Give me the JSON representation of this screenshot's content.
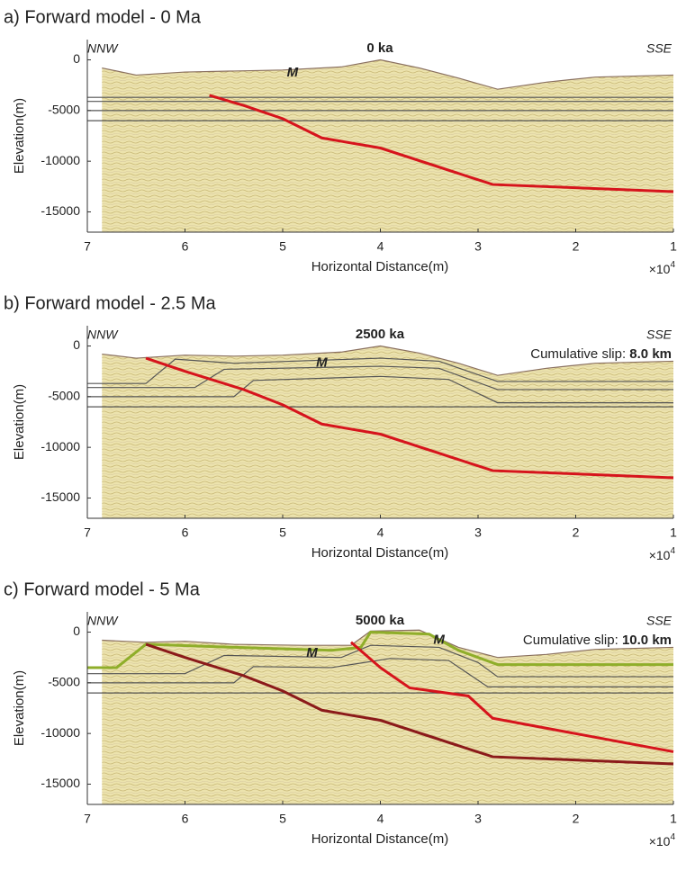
{
  "chart_data": [
    {
      "type": "line",
      "title": "a) Forward model - 0 Ma",
      "subtitle": "0 ka",
      "left_label": "NNW",
      "right_label": "SSE",
      "xlabel": "Horizontal Distance(m)",
      "ylabel": "Elevation(m)",
      "x_multiplier": "×10",
      "x_multiplier_exponent": "4",
      "annotations": [
        "M"
      ],
      "xlim": [
        7,
        1
      ],
      "xticks": [
        7,
        6,
        5,
        4,
        3,
        2,
        1
      ],
      "ylim": [
        -17000,
        2000
      ],
      "yticks": [
        0,
        -5000,
        -10000,
        -15000
      ],
      "surface": {
        "color": "#8a7060",
        "x": [
          6.85,
          6.5,
          6.0,
          5.5,
          5.0,
          4.4,
          4.0,
          3.6,
          3.2,
          2.8,
          2.3,
          1.8,
          1.0
        ],
        "values": [
          -800,
          -1500,
          -1200,
          -1100,
          -1000,
          -700,
          0,
          -800,
          -1800,
          -2900,
          -2200,
          -1700,
          -1500
        ]
      },
      "series": [
        {
          "color": "#555555",
          "x": [
            7,
            1
          ],
          "values": [
            -3700,
            -3700
          ]
        },
        {
          "color": "#555555",
          "x": [
            7,
            1
          ],
          "values": [
            -4100,
            -4100
          ]
        },
        {
          "color": "#555555",
          "x": [
            7,
            1
          ],
          "values": [
            -5000,
            -5000
          ]
        },
        {
          "color": "#555555",
          "x": [
            7,
            1
          ],
          "values": [
            -6000,
            -6000
          ]
        },
        {
          "color": "#d6141c",
          "x": [
            5.75,
            5.4,
            5.0,
            4.6,
            4.0,
            2.85,
            1.0
          ],
          "values": [
            -3500,
            -4500,
            -5800,
            -7700,
            -8700,
            -12300,
            -13000
          ]
        }
      ]
    },
    {
      "type": "line",
      "title": "b) Forward model - 2.5 Ma",
      "subtitle": "2500 ka",
      "left_label": "NNW",
      "right_label": "SSE",
      "slip_label": "Cumulative slip:",
      "slip_value": "8.0 km",
      "xlabel": "Horizontal Distance(m)",
      "ylabel": "Elevation(m)",
      "x_multiplier": "×10",
      "x_multiplier_exponent": "4",
      "annotations": [
        "M"
      ],
      "xlim": [
        7,
        1
      ],
      "xticks": [
        7,
        6,
        5,
        4,
        3,
        2,
        1
      ],
      "ylim": [
        -17000,
        2000
      ],
      "yticks": [
        0,
        -5000,
        -10000,
        -15000
      ],
      "surface": {
        "color": "#8a7060",
        "x": [
          6.85,
          6.5,
          6.0,
          5.5,
          5.0,
          4.4,
          4.0,
          3.6,
          3.2,
          2.8,
          2.3,
          1.8,
          1.0
        ],
        "values": [
          -800,
          -1200,
          -900,
          -1000,
          -900,
          -600,
          0,
          -700,
          -1700,
          -2900,
          -2200,
          -1700,
          -1500
        ]
      },
      "series": [
        {
          "color": "#555555",
          "x": [
            7,
            6.4,
            6.1,
            5.5,
            4.0,
            3.4,
            2.8,
            1.0
          ],
          "values": [
            -3700,
            -3700,
            -1300,
            -1700,
            -1200,
            -1500,
            -3500,
            -3500
          ]
        },
        {
          "color": "#555555",
          "x": [
            7,
            5.9,
            5.6,
            4.0,
            3.4,
            2.8,
            1.0
          ],
          "values": [
            -4100,
            -4100,
            -2300,
            -2000,
            -2200,
            -4300,
            -4300
          ]
        },
        {
          "color": "#555555",
          "x": [
            7,
            5.5,
            5.3,
            4.0,
            3.3,
            2.8,
            1.0
          ],
          "values": [
            -5000,
            -5000,
            -3400,
            -3000,
            -3300,
            -5600,
            -5600
          ]
        },
        {
          "color": "#555555",
          "x": [
            7,
            5.2,
            1.0
          ],
          "values": [
            -6000,
            -6000,
            -6000
          ]
        },
        {
          "color": "#d6141c",
          "x": [
            6.4,
            6.0,
            5.4,
            5.0,
            4.6,
            4.0,
            2.85,
            1.0
          ],
          "values": [
            -1200,
            -2500,
            -4300,
            -5800,
            -7700,
            -8700,
            -12300,
            -13000
          ]
        }
      ]
    },
    {
      "type": "line",
      "title": "c) Forward model - 5 Ma",
      "subtitle": "5000 ka",
      "left_label": "NNW",
      "right_label": "SSE",
      "slip_label": "Cumulative slip:",
      "slip_value": "10.0 km",
      "xlabel": "Horizontal Distance(m)",
      "ylabel": "Elevation(m)",
      "x_multiplier": "×10",
      "x_multiplier_exponent": "4",
      "annotations": [
        "M",
        "M"
      ],
      "xlim": [
        7,
        1
      ],
      "xticks": [
        7,
        6,
        5,
        4,
        3,
        2,
        1
      ],
      "ylim": [
        -17000,
        2000
      ],
      "yticks": [
        0,
        -5000,
        -10000,
        -15000
      ],
      "surface": {
        "color": "#8a7060",
        "x": [
          6.85,
          6.4,
          6.0,
          5.5,
          4.8,
          4.3,
          4.1,
          3.6,
          3.2,
          2.8,
          2.3,
          1.8,
          1.0
        ],
        "values": [
          -800,
          -1000,
          -900,
          -1200,
          -1300,
          -1300,
          100,
          200,
          -1500,
          -2500,
          -2200,
          -1700,
          -1500
        ]
      },
      "series": [
        {
          "color": "#8fae2a",
          "x": [
            7,
            6.7,
            6.4,
            6.1,
            5.5,
            4.5,
            4.2,
            4.1,
            3.5,
            3.2,
            2.8,
            1.0
          ],
          "values": [
            -3500,
            -3500,
            -1200,
            -1300,
            -1500,
            -1800,
            -1500,
            0,
            -200,
            -1800,
            -3200,
            -3200
          ]
        },
        {
          "color": "#555555",
          "x": [
            7,
            6.0,
            5.6,
            4.4,
            4.1,
            3.4,
            3.0,
            2.8,
            1.0
          ],
          "values": [
            -4100,
            -4100,
            -2300,
            -2500,
            -1300,
            -1500,
            -3000,
            -4400,
            -4400
          ]
        },
        {
          "color": "#555555",
          "x": [
            7,
            5.5,
            5.3,
            4.5,
            3.9,
            3.3,
            2.9,
            1.0
          ],
          "values": [
            -5000,
            -5000,
            -3400,
            -3500,
            -2600,
            -2800,
            -5400,
            -5400
          ]
        },
        {
          "color": "#555555",
          "x": [
            7,
            5.2,
            1.0
          ],
          "values": [
            -6000,
            -6000,
            -6000
          ]
        },
        {
          "color": "#8b1a1a",
          "x": [
            6.4,
            6.0,
            5.4,
            5.0,
            4.6,
            4.0,
            2.85,
            1.0
          ],
          "values": [
            -1200,
            -2500,
            -4300,
            -5800,
            -7700,
            -8700,
            -12300,
            -13000
          ]
        },
        {
          "color": "#d6141c",
          "x": [
            4.3,
            4.0,
            3.7,
            3.1,
            2.85,
            1.0
          ],
          "values": [
            -1000,
            -3500,
            -5500,
            -6300,
            -8500,
            -11800
          ]
        }
      ]
    }
  ]
}
